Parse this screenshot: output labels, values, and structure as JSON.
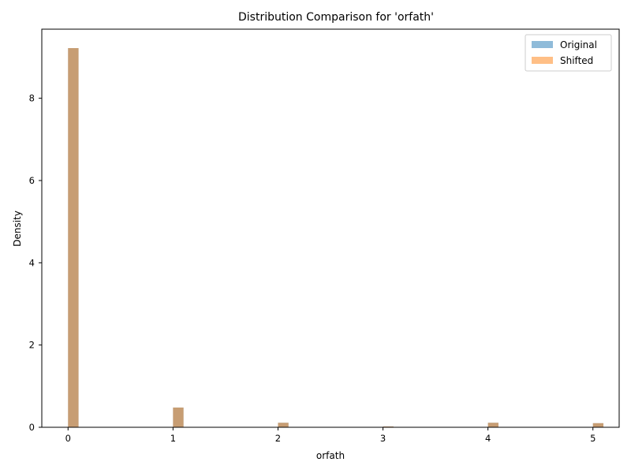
{
  "chart_data": {
    "type": "bar",
    "title": "Distribution Comparison for 'orfath'",
    "xlabel": "orfath",
    "ylabel": "Density",
    "xlim": [
      -0.25,
      5.25
    ],
    "ylim": [
      0,
      9.68
    ],
    "x_ticks": [
      "0",
      "1",
      "2",
      "3",
      "4",
      "5"
    ],
    "y_ticks": [
      "0",
      "2",
      "4",
      "6",
      "8"
    ],
    "bin_width": 0.1,
    "grid": false,
    "legend_position": "top-right",
    "series": [
      {
        "name": "Original",
        "color": "#1f77b4",
        "alpha": 0.5,
        "x": [
          0,
          1,
          2,
          3,
          4,
          5
        ],
        "values": [
          9.22,
          0.48,
          0.11,
          0.02,
          0.11,
          0.1
        ]
      },
      {
        "name": "Shifted",
        "color": "#ff7f0e",
        "alpha": 0.5,
        "x": [
          0,
          1,
          2,
          3,
          4,
          5
        ],
        "values": [
          9.22,
          0.48,
          0.11,
          0.02,
          0.11,
          0.1
        ]
      }
    ]
  }
}
